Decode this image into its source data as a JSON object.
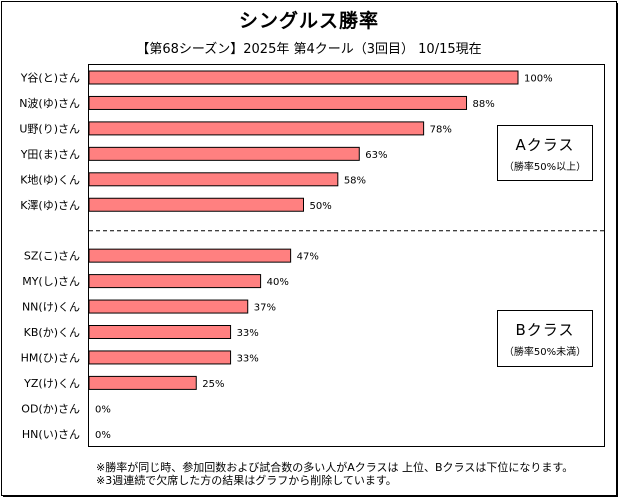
{
  "chart_data": {
    "type": "bar",
    "orientation": "horizontal",
    "title": "シングルス勝率",
    "subtitle": "【第68シーズン】2025年 第4クール（3回目） 10/15現在",
    "xlabel": "",
    "ylabel": "",
    "xlim": [
      0,
      100
    ],
    "unit": "%",
    "grid": false,
    "groups": [
      {
        "name": "A",
        "label": "Aクラス",
        "sublabel": "（勝率50%以上）",
        "categories": [
          "Y谷(と)さん",
          "N波(ゆ)さん",
          "U野(り)さん",
          "Y田(ま)さん",
          "K地(ゆ)くん",
          "K澤(ゆ)さん"
        ],
        "values": [
          100,
          88,
          78,
          63,
          58,
          50
        ],
        "labels": [
          "100%",
          "88%",
          "78%",
          "63%",
          "58%",
          "50%"
        ]
      },
      {
        "name": "B",
        "label": "Bクラス",
        "sublabel": "（勝率50%未満）",
        "categories": [
          "SZ(こ)さん",
          "MY(し)さん",
          "NN(け)くん",
          "KB(か)くん",
          "HM(ひ)さん",
          "YZ(け)くん",
          "OD(か)さん",
          "HN(い)さん"
        ],
        "values": [
          47,
          40,
          37,
          33,
          33,
          25,
          0,
          0
        ],
        "labels": [
          "47%",
          "40%",
          "37%",
          "33%",
          "33%",
          "25%",
          "0%",
          "0%"
        ]
      }
    ],
    "divider": "dashed line between Aクラス and Bクラス",
    "bar_color": "#ff8080",
    "bar_edge_color": "#000000"
  },
  "notes": [
    "※勝率が同じ時、参加回数および試合数の多い人がAクラスは 上位、Bクラスは下位になります。",
    "※3週連続で欠席した方の結果はグラフから削除しています。"
  ]
}
